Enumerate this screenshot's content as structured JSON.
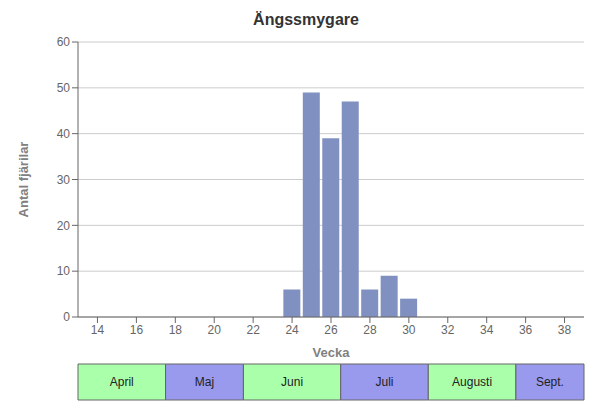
{
  "chart_data": {
    "type": "bar",
    "title": "Ängssmygare",
    "xlabel": "Vecka",
    "ylabel": "Antal fjärilar",
    "x": [
      24,
      25,
      26,
      27,
      28,
      29,
      30
    ],
    "values": [
      6,
      49,
      39,
      47,
      6,
      9,
      4
    ],
    "color": "#8090C0",
    "xlim": [
      13,
      39
    ],
    "ylim": [
      0,
      60
    ],
    "xticks": [
      14,
      16,
      18,
      20,
      22,
      24,
      26,
      28,
      30,
      32,
      34,
      36,
      38
    ],
    "yticks": [
      0,
      10,
      20,
      30,
      40,
      50,
      60
    ],
    "grid": true,
    "month_bands": [
      {
        "label": "April",
        "x_start": 13,
        "x_end": 17.5,
        "color": "#aaffaa"
      },
      {
        "label": "Maj",
        "x_start": 17.5,
        "x_end": 21.5,
        "color": "#9999ee"
      },
      {
        "label": "Juni",
        "x_start": 21.5,
        "x_end": 26.5,
        "color": "#aaffaa"
      },
      {
        "label": "Juli",
        "x_start": 26.5,
        "x_end": 31.0,
        "color": "#9999ee"
      },
      {
        "label": "Augusti",
        "x_start": 31.0,
        "x_end": 35.5,
        "color": "#aaffaa"
      },
      {
        "label": "Sept.",
        "x_start": 35.5,
        "x_end": 39.0,
        "color": "#9999ee"
      }
    ]
  }
}
